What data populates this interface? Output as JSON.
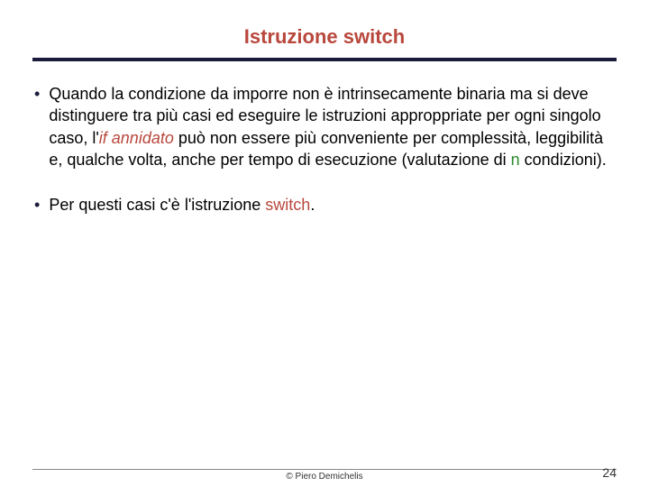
{
  "title": "Istruzione switch",
  "bullets": [
    {
      "pre": "Quando la condizione da imporre non è intrinsecamente binaria ma si deve distinguere tra più casi ed eseguire le istruzioni approppriate per ogni singolo caso, l'",
      "kw1": "if annidato",
      "mid": " può non essere più conveniente per complessità, leggibilità e, qualche volta, anche per tempo di esecuzione (valutazione di ",
      "kw2": "n",
      "post": " condizioni)."
    },
    {
      "pre": "Per questi casi c'è l'istruzione ",
      "kw1": "switch",
      "post": "."
    }
  ],
  "footer": "© Piero Demichelis",
  "page": "24",
  "colors": {
    "title": "#b8473c",
    "rule": "#1a1a3a",
    "kw_italic": "#b8473c",
    "kw_green": "#2a8a2a"
  }
}
